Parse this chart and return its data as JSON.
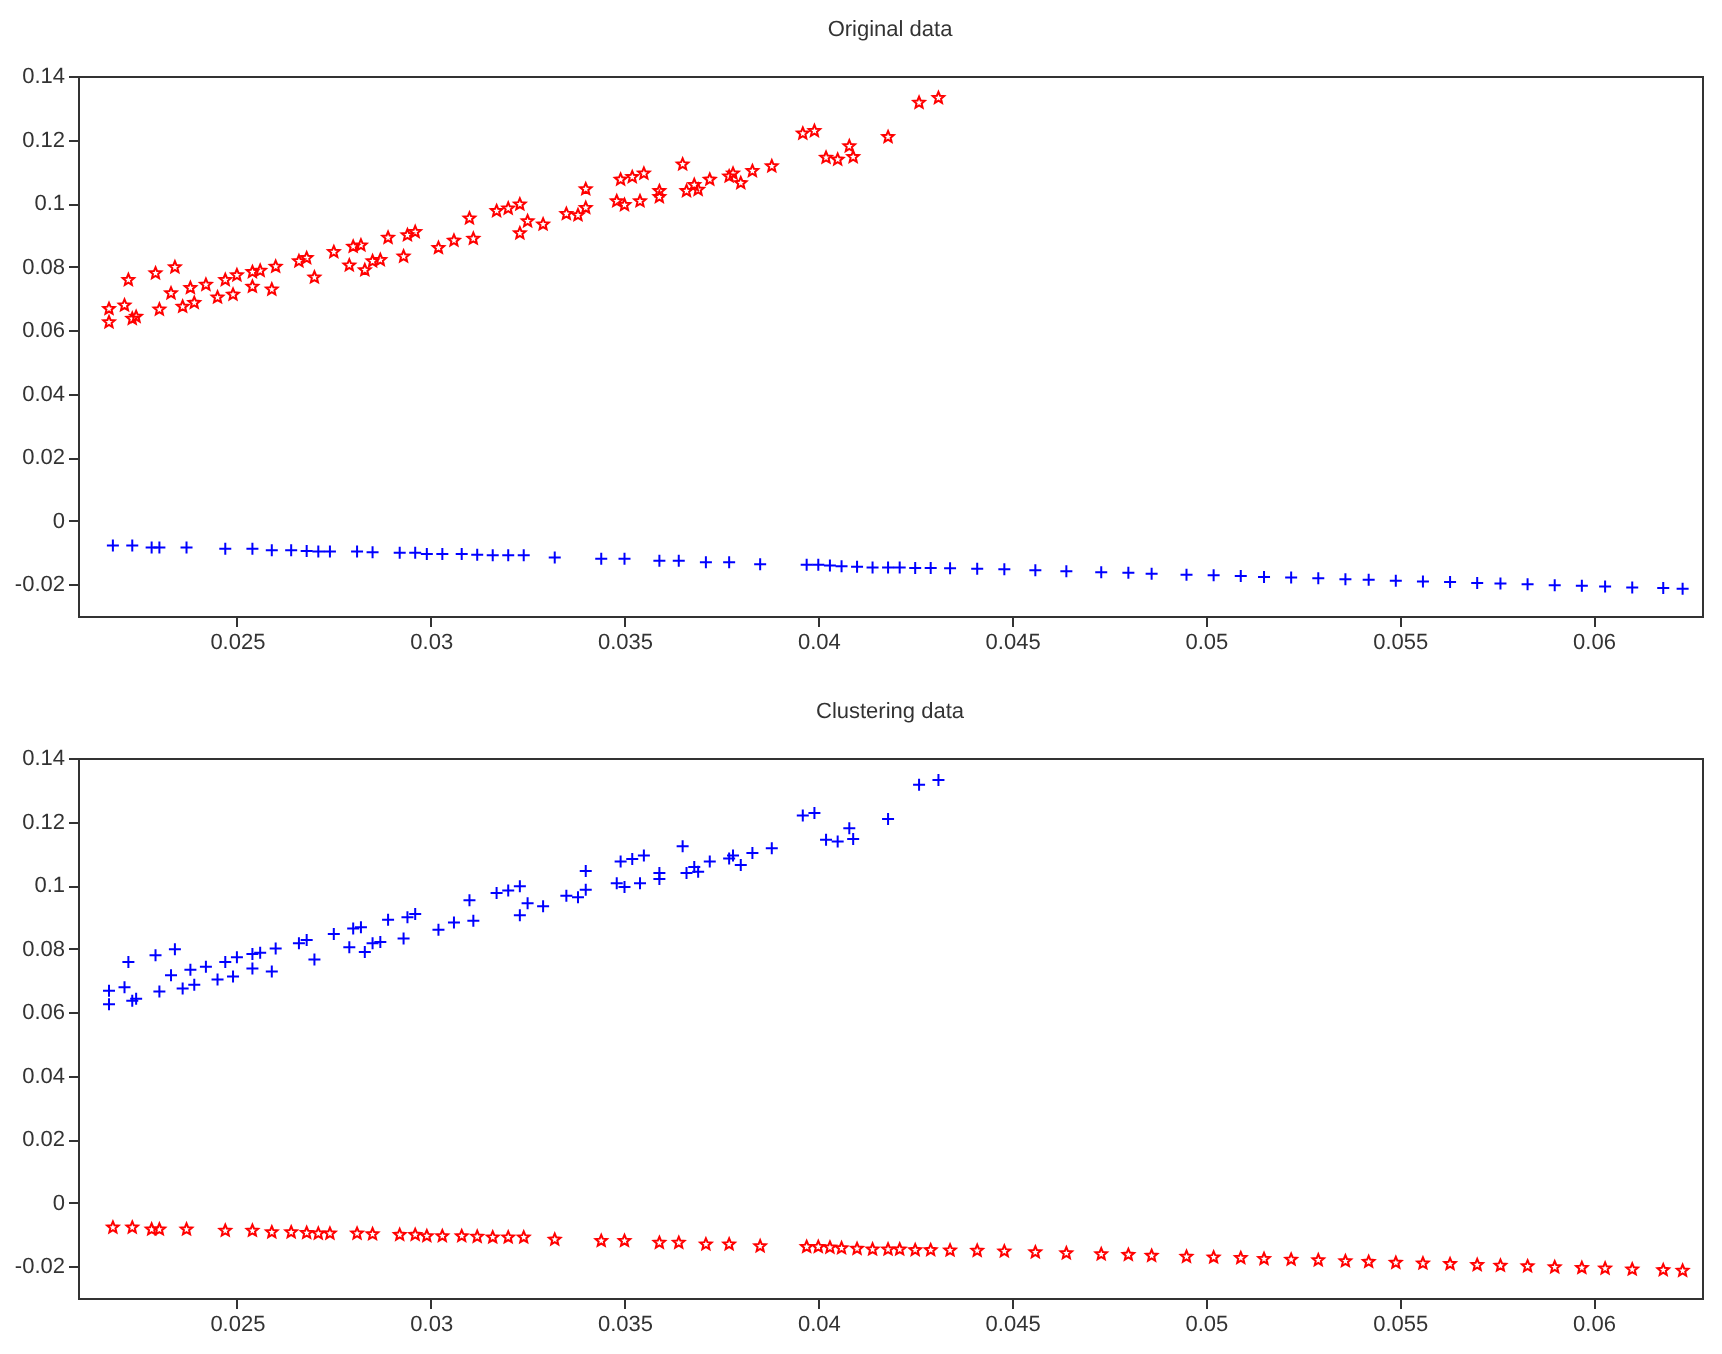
{
  "chart_data": [
    {
      "type": "scatter",
      "title": "Original data",
      "xlim": [
        0.0209,
        0.0628
      ],
      "ylim": [
        -0.03,
        0.14
      ],
      "xticks": [
        0.025,
        0.03,
        0.035,
        0.04,
        0.045,
        0.05,
        0.055,
        0.06
      ],
      "yticks": [
        -0.02,
        0,
        0.02,
        0.04,
        0.06,
        0.08,
        0.1,
        0.12,
        0.14
      ],
      "series": [
        {
          "color": "#ff0000",
          "marker": "star",
          "x": [
            0.0217,
            0.0217,
            0.0221,
            0.0222,
            0.0223,
            0.0224,
            0.0229,
            0.023,
            0.0233,
            0.0234,
            0.0236,
            0.0238,
            0.0239,
            0.0242,
            0.0245,
            0.0247,
            0.0249,
            0.025,
            0.0254,
            0.0254,
            0.0256,
            0.0259,
            0.026,
            0.0266,
            0.0268,
            0.027,
            0.0275,
            0.0279,
            0.028,
            0.0282,
            0.0283,
            0.0285,
            0.0287,
            0.0289,
            0.0293,
            0.0294,
            0.0296,
            0.0302,
            0.0306,
            0.031,
            0.0311,
            0.0317,
            0.032,
            0.0323,
            0.0323,
            0.0325,
            0.0329,
            0.0335,
            0.0338,
            0.034,
            0.034,
            0.0348,
            0.0349,
            0.035,
            0.0352,
            0.0354,
            0.0355,
            0.0359,
            0.0359,
            0.0365,
            0.0366,
            0.0368,
            0.0369,
            0.0372,
            0.0377,
            0.0378,
            0.038,
            0.0383,
            0.0388,
            0.0396,
            0.0399,
            0.0402,
            0.0405,
            0.0408,
            0.0409,
            0.0418,
            0.0426,
            0.0431
          ],
          "values": [
            0.0667,
            0.0625,
            0.0678,
            0.0758,
            0.0636,
            0.0642,
            0.0779,
            0.0665,
            0.0716,
            0.0798,
            0.0674,
            0.0733,
            0.0686,
            0.0743,
            0.0703,
            0.0758,
            0.0712,
            0.0773,
            0.0783,
            0.0737,
            0.0787,
            0.0728,
            0.08,
            0.0817,
            0.0827,
            0.0766,
            0.0846,
            0.0804,
            0.0863,
            0.0867,
            0.0789,
            0.0817,
            0.0821,
            0.0891,
            0.0832,
            0.0899,
            0.0909,
            0.0859,
            0.0882,
            0.0952,
            0.0888,
            0.0975,
            0.0983,
            0.0996,
            0.0905,
            0.0943,
            0.0933,
            0.0966,
            0.0962,
            0.0985,
            0.1044,
            0.1006,
            0.1074,
            0.0994,
            0.1082,
            0.1006,
            0.1093,
            0.1038,
            0.1019,
            0.1122,
            0.1038,
            0.1057,
            0.1042,
            0.1074,
            0.1084,
            0.1093,
            0.1063,
            0.1101,
            0.1116,
            0.1219,
            0.1227,
            0.1143,
            0.1137,
            0.1179,
            0.1145,
            0.1208,
            0.1316,
            0.1331
          ]
        },
        {
          "color": "#0000ff",
          "marker": "cross",
          "x": [
            0.0218,
            0.0223,
            0.0228,
            0.023,
            0.0237,
            0.0247,
            0.0254,
            0.0259,
            0.0264,
            0.0268,
            0.0271,
            0.0274,
            0.0281,
            0.0285,
            0.0292,
            0.0296,
            0.0299,
            0.0303,
            0.0308,
            0.0312,
            0.0316,
            0.032,
            0.0324,
            0.0332,
            0.0344,
            0.035,
            0.0359,
            0.0364,
            0.0371,
            0.0377,
            0.0385,
            0.0397,
            0.04,
            0.0403,
            0.0406,
            0.041,
            0.0414,
            0.0418,
            0.0421,
            0.0425,
            0.0429,
            0.0434,
            0.0441,
            0.0448,
            0.0456,
            0.0464,
            0.0473,
            0.048,
            0.0486,
            0.0495,
            0.0502,
            0.0509,
            0.0515,
            0.0522,
            0.0529,
            0.0536,
            0.0542,
            0.0549,
            0.0556,
            0.0563,
            0.057,
            0.0576,
            0.0583,
            0.059,
            0.0597,
            0.0603,
            0.061,
            0.0618,
            0.0623
          ],
          "values": [
            -0.0078,
            -0.0078,
            -0.0084,
            -0.0084,
            -0.0084,
            -0.0088,
            -0.0088,
            -0.0093,
            -0.0093,
            -0.0095,
            -0.0097,
            -0.0097,
            -0.0097,
            -0.0099,
            -0.0101,
            -0.0101,
            -0.0105,
            -0.0105,
            -0.0105,
            -0.0107,
            -0.0109,
            -0.0109,
            -0.0109,
            -0.0116,
            -0.012,
            -0.012,
            -0.0126,
            -0.0126,
            -0.0131,
            -0.0131,
            -0.0137,
            -0.0139,
            -0.0139,
            -0.0141,
            -0.0143,
            -0.0145,
            -0.0147,
            -0.0147,
            -0.0147,
            -0.0149,
            -0.0149,
            -0.015,
            -0.0151,
            -0.0153,
            -0.0156,
            -0.0159,
            -0.0162,
            -0.0164,
            -0.0167,
            -0.017,
            -0.0172,
            -0.0174,
            -0.0177,
            -0.0179,
            -0.0181,
            -0.0184,
            -0.0186,
            -0.0189,
            -0.0191,
            -0.0193,
            -0.0196,
            -0.0198,
            -0.02,
            -0.0203,
            -0.0205,
            -0.0207,
            -0.021,
            -0.0212,
            -0.0214
          ]
        }
      ]
    },
    {
      "type": "scatter",
      "title": "Clustering data",
      "xlim": [
        0.0209,
        0.0628
      ],
      "ylim": [
        -0.03,
        0.14
      ],
      "xticks": [
        0.025,
        0.03,
        0.035,
        0.04,
        0.045,
        0.05,
        0.055,
        0.06
      ],
      "yticks": [
        -0.02,
        0,
        0.02,
        0.04,
        0.06,
        0.08,
        0.1,
        0.12,
        0.14
      ],
      "series": [
        {
          "color": "#0000ff",
          "marker": "cross",
          "x": [
            0.0217,
            0.0217,
            0.0221,
            0.0222,
            0.0223,
            0.0224,
            0.0229,
            0.023,
            0.0233,
            0.0234,
            0.0236,
            0.0238,
            0.0239,
            0.0242,
            0.0245,
            0.0247,
            0.0249,
            0.025,
            0.0254,
            0.0254,
            0.0256,
            0.0259,
            0.026,
            0.0266,
            0.0268,
            0.027,
            0.0275,
            0.0279,
            0.028,
            0.0282,
            0.0283,
            0.0285,
            0.0287,
            0.0289,
            0.0293,
            0.0294,
            0.0296,
            0.0302,
            0.0306,
            0.031,
            0.0311,
            0.0317,
            0.032,
            0.0323,
            0.0323,
            0.0325,
            0.0329,
            0.0335,
            0.0338,
            0.034,
            0.034,
            0.0348,
            0.0349,
            0.035,
            0.0352,
            0.0354,
            0.0355,
            0.0359,
            0.0359,
            0.0365,
            0.0366,
            0.0368,
            0.0369,
            0.0372,
            0.0377,
            0.0378,
            0.038,
            0.0383,
            0.0388,
            0.0396,
            0.0399,
            0.0402,
            0.0405,
            0.0408,
            0.0409,
            0.0418,
            0.0426,
            0.0431
          ],
          "values": [
            0.0667,
            0.0625,
            0.0678,
            0.0758,
            0.0636,
            0.0642,
            0.0779,
            0.0665,
            0.0716,
            0.0798,
            0.0674,
            0.0733,
            0.0686,
            0.0743,
            0.0703,
            0.0758,
            0.0712,
            0.0773,
            0.0783,
            0.0737,
            0.0787,
            0.0728,
            0.08,
            0.0817,
            0.0827,
            0.0766,
            0.0846,
            0.0804,
            0.0863,
            0.0867,
            0.0789,
            0.0817,
            0.0821,
            0.0891,
            0.0832,
            0.0899,
            0.0909,
            0.0859,
            0.0882,
            0.0952,
            0.0888,
            0.0975,
            0.0983,
            0.0996,
            0.0905,
            0.0943,
            0.0933,
            0.0966,
            0.0962,
            0.0985,
            0.1044,
            0.1006,
            0.1074,
            0.0994,
            0.1082,
            0.1006,
            0.1093,
            0.1038,
            0.1019,
            0.1122,
            0.1038,
            0.1057,
            0.1042,
            0.1074,
            0.1084,
            0.1093,
            0.1063,
            0.1101,
            0.1116,
            0.1219,
            0.1227,
            0.1143,
            0.1137,
            0.1179,
            0.1145,
            0.1208,
            0.1316,
            0.1331
          ]
        },
        {
          "color": "#ff0000",
          "marker": "star",
          "x": [
            0.0218,
            0.0223,
            0.0228,
            0.023,
            0.0237,
            0.0247,
            0.0254,
            0.0259,
            0.0264,
            0.0268,
            0.0271,
            0.0274,
            0.0281,
            0.0285,
            0.0292,
            0.0296,
            0.0299,
            0.0303,
            0.0308,
            0.0312,
            0.0316,
            0.032,
            0.0324,
            0.0332,
            0.0344,
            0.035,
            0.0359,
            0.0364,
            0.0371,
            0.0377,
            0.0385,
            0.0397,
            0.04,
            0.0403,
            0.0406,
            0.041,
            0.0414,
            0.0418,
            0.0421,
            0.0425,
            0.0429,
            0.0434,
            0.0441,
            0.0448,
            0.0456,
            0.0464,
            0.0473,
            0.048,
            0.0486,
            0.0495,
            0.0502,
            0.0509,
            0.0515,
            0.0522,
            0.0529,
            0.0536,
            0.0542,
            0.0549,
            0.0556,
            0.0563,
            0.057,
            0.0576,
            0.0583,
            0.059,
            0.0597,
            0.0603,
            0.061,
            0.0618,
            0.0623
          ],
          "values": [
            -0.0078,
            -0.0078,
            -0.0084,
            -0.0084,
            -0.0084,
            -0.0088,
            -0.0088,
            -0.0093,
            -0.0093,
            -0.0095,
            -0.0097,
            -0.0097,
            -0.0097,
            -0.0099,
            -0.0101,
            -0.0101,
            -0.0105,
            -0.0105,
            -0.0105,
            -0.0107,
            -0.0109,
            -0.0109,
            -0.0109,
            -0.0116,
            -0.012,
            -0.012,
            -0.0126,
            -0.0126,
            -0.0131,
            -0.0131,
            -0.0137,
            -0.0139,
            -0.0139,
            -0.0141,
            -0.0143,
            -0.0145,
            -0.0147,
            -0.0147,
            -0.0147,
            -0.0149,
            -0.0149,
            -0.015,
            -0.0151,
            -0.0153,
            -0.0156,
            -0.0159,
            -0.0162,
            -0.0164,
            -0.0167,
            -0.017,
            -0.0172,
            -0.0174,
            -0.0177,
            -0.0179,
            -0.0181,
            -0.0184,
            -0.0186,
            -0.0189,
            -0.0191,
            -0.0193,
            -0.0196,
            -0.0198,
            -0.02,
            -0.0203,
            -0.0205,
            -0.0207,
            -0.021,
            -0.0212,
            -0.0214
          ]
        }
      ]
    }
  ]
}
